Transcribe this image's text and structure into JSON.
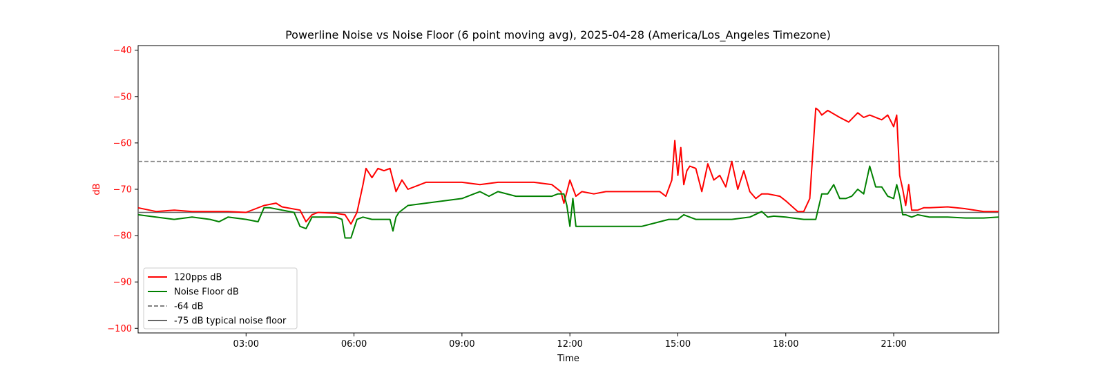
{
  "chart_data": {
    "type": "line",
    "title": "Powerline Noise vs Noise Floor (6 point moving avg), 2025-04-28 (America/Los_Angeles Timezone)",
    "xlabel": "Time",
    "ylabel": "dB",
    "ylabel_color": "#ff0000",
    "ytick_color": "#ff0000",
    "xlim": [
      "00:00",
      "23:55"
    ],
    "ylim": [
      -101,
      -39
    ],
    "xticks": [
      "03:00",
      "06:00",
      "09:00",
      "12:00",
      "15:00",
      "18:00",
      "21:00"
    ],
    "yticks": [
      -40,
      -50,
      -60,
      -70,
      -80,
      -90,
      -100
    ],
    "grid": false,
    "legend_position": "lower-left",
    "series": [
      {
        "name": "120pps dB",
        "color": "#ff0000",
        "style": "solid",
        "x": [
          "00:00",
          "00:30",
          "01:00",
          "01:30",
          "02:00",
          "02:30",
          "03:00",
          "03:30",
          "03:50",
          "04:00",
          "04:30",
          "04:40",
          "04:50",
          "05:00",
          "05:30",
          "05:45",
          "05:55",
          "06:05",
          "06:15",
          "06:20",
          "06:30",
          "06:40",
          "06:50",
          "07:00",
          "07:10",
          "07:20",
          "07:30",
          "07:50",
          "08:00",
          "08:30",
          "09:00",
          "09:30",
          "10:00",
          "10:30",
          "11:00",
          "11:30",
          "11:45",
          "11:50",
          "12:00",
          "12:10",
          "12:20",
          "12:40",
          "13:00",
          "13:30",
          "14:00",
          "14:30",
          "14:40",
          "14:50",
          "14:55",
          "15:00",
          "15:05",
          "15:10",
          "15:15",
          "15:20",
          "15:30",
          "15:40",
          "15:50",
          "16:00",
          "16:10",
          "16:20",
          "16:30",
          "16:40",
          "16:50",
          "17:00",
          "17:10",
          "17:20",
          "17:30",
          "17:50",
          "18:00",
          "18:20",
          "18:30",
          "18:40",
          "18:50",
          "18:55",
          "19:00",
          "19:10",
          "19:30",
          "19:45",
          "20:00",
          "20:10",
          "20:20",
          "20:40",
          "20:50",
          "21:00",
          "21:05",
          "21:10",
          "21:15",
          "21:20",
          "21:25",
          "21:30",
          "21:40",
          "21:50",
          "22:00",
          "22:30",
          "23:00",
          "23:30",
          "23:55"
        ],
        "values": [
          -74,
          -74.8,
          -74.5,
          -74.8,
          -74.8,
          -74.8,
          -75,
          -73.5,
          -73,
          -73.8,
          -74.5,
          -77,
          -75.5,
          -75,
          -75.2,
          -75.5,
          -77.5,
          -75,
          -69,
          -65.5,
          -67.5,
          -65.5,
          -66,
          -65.5,
          -70.5,
          -68,
          -70,
          -69,
          -68.5,
          -68.5,
          -68.5,
          -69,
          -68.5,
          -68.5,
          -68.5,
          -69,
          -70.5,
          -73,
          -68,
          -71.5,
          -70.5,
          -71,
          -70.5,
          -70.5,
          -70.5,
          -70.5,
          -71.5,
          -68,
          -59.5,
          -67,
          -61,
          -69,
          -66,
          -65,
          -65.5,
          -70.5,
          -64.5,
          -68,
          -67,
          -69.5,
          -64,
          -70,
          -66,
          -70.5,
          -72,
          -71,
          -71,
          -71.5,
          -72.5,
          -74.8,
          -74.8,
          -72,
          -52.5,
          -53,
          -54,
          -53,
          -54.5,
          -55.5,
          -53.5,
          -54.5,
          -54,
          -55,
          -54,
          -56.5,
          -54,
          -67,
          -70,
          -73.5,
          -69,
          -74.5,
          -74.5,
          -74,
          -74,
          -73.8,
          -74.2,
          -74.8,
          -74.8
        ]
      },
      {
        "name": "Noise Floor dB",
        "color": "#008000",
        "style": "solid",
        "x": [
          "00:00",
          "00:30",
          "01:00",
          "01:30",
          "02:00",
          "02:15",
          "02:30",
          "03:00",
          "03:20",
          "03:30",
          "03:40",
          "04:00",
          "04:20",
          "04:30",
          "04:40",
          "04:50",
          "05:00",
          "05:30",
          "05:40",
          "05:45",
          "05:55",
          "06:05",
          "06:15",
          "06:30",
          "07:00",
          "07:05",
          "07:10",
          "07:15",
          "07:30",
          "08:00",
          "08:30",
          "09:00",
          "09:20",
          "09:30",
          "09:45",
          "10:00",
          "10:30",
          "11:00",
          "11:30",
          "11:40",
          "11:50",
          "11:55",
          "12:00",
          "12:05",
          "12:10",
          "12:30",
          "13:00",
          "13:30",
          "14:00",
          "14:30",
          "14:45",
          "15:00",
          "15:10",
          "15:20",
          "15:30",
          "16:00",
          "16:30",
          "17:00",
          "17:20",
          "17:30",
          "17:40",
          "18:00",
          "18:30",
          "18:50",
          "19:00",
          "19:10",
          "19:20",
          "19:30",
          "19:40",
          "19:50",
          "20:00",
          "20:10",
          "20:20",
          "20:30",
          "20:40",
          "20:50",
          "21:00",
          "21:05",
          "21:10",
          "21:15",
          "21:20",
          "21:30",
          "21:40",
          "22:00",
          "22:30",
          "23:00",
          "23:30",
          "23:55"
        ],
        "values": [
          -75.5,
          -76,
          -76.5,
          -76,
          -76.5,
          -77,
          -76,
          -76.5,
          -77,
          -74,
          -74,
          -74.5,
          -75,
          -78,
          -78.5,
          -76,
          -76,
          -76,
          -76.5,
          -80.5,
          -80.5,
          -76.5,
          -76,
          -76.5,
          -76.5,
          -79,
          -76,
          -75,
          -73.5,
          -73,
          -72.5,
          -72,
          -71,
          -70.5,
          -71.5,
          -70.5,
          -71.5,
          -71.5,
          -71.5,
          -71,
          -71,
          -73.5,
          -78,
          -72,
          -78,
          -78,
          -78,
          -78,
          -78,
          -77,
          -76.5,
          -76.5,
          -75.5,
          -76,
          -76.5,
          -76.5,
          -76.5,
          -76,
          -74.8,
          -76,
          -75.8,
          -76,
          -76.5,
          -76.5,
          -71,
          -71,
          -69,
          -72,
          -72,
          -71.5,
          -70,
          -71,
          -65,
          -69.5,
          -69.5,
          -71.5,
          -72,
          -69,
          -71.5,
          -75.5,
          -75.5,
          -76,
          -75.5,
          -76,
          -76,
          -76.2,
          -76.2,
          -76
        ]
      },
      {
        "name": "-64 dB",
        "color": "#808080",
        "style": "dashed",
        "x": [
          "00:00",
          "23:55"
        ],
        "values": [
          -64,
          -64
        ]
      },
      {
        "name": "-75 dB typical noise floor",
        "color": "#666666",
        "style": "solid",
        "x": [
          "00:00",
          "23:55"
        ],
        "values": [
          -75,
          -75
        ]
      }
    ]
  }
}
